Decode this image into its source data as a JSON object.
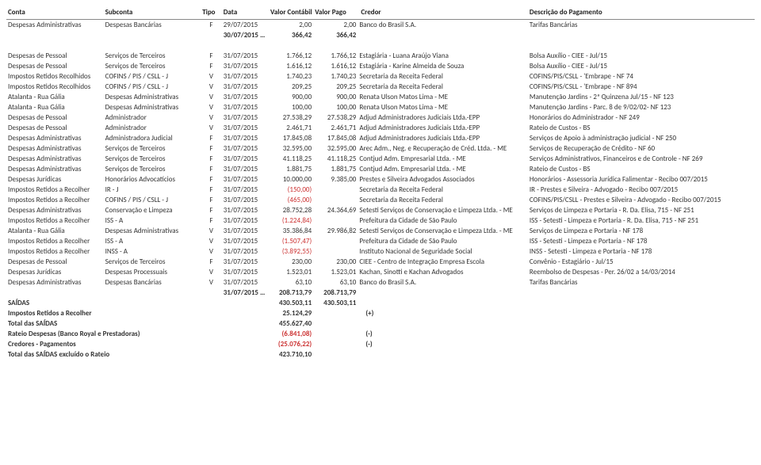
{
  "headers": {
    "conta": "Conta",
    "subconta": "Subconta",
    "tipo": "Tipo",
    "data": "Data",
    "valor_contabil": "Valor Contábil",
    "valor_pago": "Valor Pago",
    "credor": "Credor",
    "descricao": "Descrição do Pagamento"
  },
  "rows": [
    {
      "conta": "Despesas Administrativas",
      "sub": "Despesas Bancárias",
      "tipo": "F",
      "data": "29/07/2015",
      "vc": "2,00",
      "vp": "2,00",
      "cred": "Banco do Brasil S.A.",
      "desc": "Tarifas Bancárias"
    },
    {
      "conta": "",
      "sub": "",
      "tipo": "",
      "data": "30/07/2015 Total",
      "vc": "366,42",
      "vp": "366,42",
      "cred": "",
      "desc": "",
      "is_subtotal": true
    },
    {
      "blank": true
    },
    {
      "conta": "Despesas de Pessoal",
      "sub": "Serviços de Terceiros",
      "tipo": "F",
      "data": "31/07/2015",
      "vc": "1.766,12",
      "vp": "1.766,12",
      "cred": "Estagiária - Luana Araújo Viana",
      "desc": "Bolsa Auxílio - CIEE - Jul/15"
    },
    {
      "conta": "Despesas de Pessoal",
      "sub": "Serviços de Terceiros",
      "tipo": "F",
      "data": "31/07/2015",
      "vc": "1.616,12",
      "vp": "1.616,12",
      "cred": "Estagiária - Karine Almeida de Souza",
      "desc": "Bolsa Auxílio - CIEE - Jul/15"
    },
    {
      "conta": "Impostos Retidos Recolhidos",
      "sub": "COFINS / PIS / CSLL - J",
      "tipo": "V",
      "data": "31/07/2015",
      "vc": "1.740,23",
      "vp": "1.740,23",
      "cred": "Secretaria da Receita Federal",
      "desc": "COFINS/PIS/CSLL - 'Embrape  - NF 74"
    },
    {
      "conta": "Impostos Retidos Recolhidos",
      "sub": "COFINS / PIS / CSLL - J",
      "tipo": "V",
      "data": "31/07/2015",
      "vc": "209,25",
      "vp": "209,25",
      "cred": "Secretaria da Receita Federal",
      "desc": "COFINS/PIS/CSLL - 'Embrape  - NF 894"
    },
    {
      "conta": "Atalanta - Rua Gália",
      "sub": "Despesas Administrativas",
      "tipo": "V",
      "data": "31/07/2015",
      "vc": "900,00",
      "vp": "900,00",
      "cred": "Renata Ulson Matos Lima - ME",
      "desc": "Manutenção Jardins - 2ª Quinzena Jul/15 -  NF 123"
    },
    {
      "conta": "Atalanta - Rua Gália",
      "sub": "Despesas Administrativas",
      "tipo": "V",
      "data": "31/07/2015",
      "vc": "100,00",
      "vp": "100,00",
      "cred": "Renata Ulson Matos Lima - ME",
      "desc": "Manutenção Jardins - Parc. 8 de 9/02/02-  NF 123"
    },
    {
      "conta": "Despesas de Pessoal",
      "sub": "Administrador",
      "tipo": "V",
      "data": "31/07/2015",
      "vc": "27.538,29",
      "vp": "27.538,29",
      "cred": "Adjud Administradores Judiciais Ltda.-EPP",
      "desc": "Honorários do Administrador - NF 249"
    },
    {
      "conta": "Despesas de Pessoal",
      "sub": "Administrador",
      "tipo": "V",
      "data": "31/07/2015",
      "vc": "2.461,71",
      "vp": "2.461,71",
      "cred": "Adjud Administradores Judiciais Ltda.-EPP",
      "desc": "Rateio de Custos - BS"
    },
    {
      "conta": "Despesas Administrativas",
      "sub": "Administradora Judicial",
      "tipo": "F",
      "data": "31/07/2015",
      "vc": "17.845,08",
      "vp": "17.845,08",
      "cred": "Adjud Administradores Judiciais Ltda.-EPP",
      "desc": "Serviços de Apoio à administração judicial - NF 250"
    },
    {
      "conta": "Despesas Administrativas",
      "sub": "Serviços de Terceiros",
      "tipo": "F",
      "data": "31/07/2015",
      "vc": "32.595,00",
      "vp": "32.595,00",
      "cred": "Arec Adm., Neg. e Recuperação de Créd. Ltda. - ME",
      "desc": "Serviços de Recuperação de Crédito - NF 60"
    },
    {
      "conta": "Despesas Administrativas",
      "sub": "Serviços de Terceiros",
      "tipo": "F",
      "data": "31/07/2015",
      "vc": "41.118,25",
      "vp": "41.118,25",
      "cred": "Contjud Adm. Empresarial Ltda. - ME",
      "desc": "Serviços Administrativos, Financeiros e de Controle - NF 269"
    },
    {
      "conta": "Despesas Administrativas",
      "sub": "Serviços de Terceiros",
      "tipo": "F",
      "data": "31/07/2015",
      "vc": "1.881,75",
      "vp": "1.881,75",
      "cred": "Contjud Adm. Empresarial Ltda. - ME",
      "desc": "Rateio de Custos - BS"
    },
    {
      "conta": "Despesas Jurídicas",
      "sub": "Honorários Advocatícios",
      "tipo": "F",
      "data": "31/07/2015",
      "vc": "10.000,00",
      "vp": "9.385,00",
      "cred": "Prestes e Silveira Advogados Associados",
      "desc": "Honorários - Assessoria Jurídica Falimentar - Recibo 007/2015"
    },
    {
      "conta": "Impostos Retidos a Recolher",
      "sub": "IR - J",
      "tipo": "F",
      "data": "31/07/2015",
      "vc": "(150,00)",
      "vc_red": true,
      "vp": "",
      "cred": "Secretaria da Receita Federal",
      "desc": "IR - Prestes e Silveira - Advogado - Recibo 007/2015"
    },
    {
      "conta": "Impostos Retidos a Recolher",
      "sub": "COFINS / PIS / CSLL - J",
      "tipo": "F",
      "data": "31/07/2015",
      "vc": "(465,00)",
      "vc_red": true,
      "vp": "",
      "cred": "Secretaria da Receita Federal",
      "desc": "COFINS/PIS/CSLL - Prestes e Silveira - Advogado - Recibo 007/2015"
    },
    {
      "conta": "Despesas Administrativas",
      "sub": "Conservação e Limpeza",
      "tipo": "F",
      "data": "31/07/2015",
      "vc": "28.752,28",
      "vp": "24.364,69",
      "cred": "Setesti Serviços de Conservação e Limpeza Ltda. - ME",
      "desc": "Serviços de Limpeza e Portaria - R. Da. Elisa, 715 - NF 251"
    },
    {
      "conta": "Impostos Retidos a Recolher",
      "sub": "ISS - A",
      "tipo": "F",
      "data": "31/07/2015",
      "vc": "(1.224,84)",
      "vc_red": true,
      "vp": "",
      "cred": "Prefeitura da Cidade de São Paulo",
      "desc": "ISS - Setesti - Limpeza e Portaria - R. Da. Elisa, 715 - NF 251"
    },
    {
      "conta": "Atalanta - Rua Gália",
      "sub": "Despesas Administrativas",
      "tipo": "V",
      "data": "31/07/2015",
      "vc": "35.386,84",
      "vp": "29.986,82",
      "cred": "Setesti Serviços de Conservação e Limpeza Ltda. - ME",
      "desc": "Serviços de Limpeza e Portaria - NF 178"
    },
    {
      "conta": "Impostos Retidos a Recolher",
      "sub": "ISS - A",
      "tipo": "V",
      "data": "31/07/2015",
      "vc": "(1.507,47)",
      "vc_red": true,
      "vp": "",
      "cred": "Prefeitura da Cidade de São Paulo",
      "desc": "ISS - Setesti - Limpeza e Portaria - NF 178"
    },
    {
      "conta": "Impostos Retidos a Recolher",
      "sub": "INSS - A",
      "tipo": "V",
      "data": "31/07/2015",
      "vc": "(3.892,55)",
      "vc_red": true,
      "vp": "",
      "cred": "Instituto Nacional de Seguridade Social",
      "desc": "INSS - Setesti - Limpeza e Portaria - NF 178"
    },
    {
      "conta": "Despesas de Pessoal",
      "sub": "Serviços de Terceiros",
      "tipo": "F",
      "data": "31/07/2015",
      "vc": "230,00",
      "vp": "230,00",
      "cred": "CIEE - Centro de Integração Empresa Escola",
      "desc": "Convênio - Estagiário - Jul/15"
    },
    {
      "conta": "Despesas Jurídicas",
      "sub": "Despesas Processuais",
      "tipo": "V",
      "data": "31/07/2015",
      "vc": "1.523,01",
      "vp": "1.523,01",
      "cred": "Kachan, Sinotti e Kachan Advogados",
      "desc": "Reembolso de Despesas - Per. 26/02 a 14/03/2014"
    },
    {
      "conta": "Despesas Administrativas",
      "sub": "Despesas Bancárias",
      "tipo": "V",
      "data": "31/07/2015",
      "vc": "63,10",
      "vp": "63,10",
      "cred": "Banco do Brasil S.A.",
      "desc": "Tarifas Bancárias"
    },
    {
      "conta": "",
      "sub": "",
      "tipo": "",
      "data": "31/07/2015 Total",
      "vc": "208.713,79",
      "vp": "208.713,79",
      "cred": "",
      "desc": "",
      "is_subtotal": true
    }
  ],
  "summary": [
    {
      "label": "SAÍDAS",
      "v1": "430.503,11",
      "v2": "430.503,11",
      "suffix": "",
      "bold": true
    },
    {
      "label": "Impostos Retidos a Recolher",
      "v1": "25.124,29",
      "v2": "",
      "suffix": "(+)",
      "bold": true
    },
    {
      "label": "Total das SAÍDAS",
      "v1": "455.627,40",
      "v2": "",
      "suffix": "",
      "bold": true
    },
    {
      "label": "Rateio Despesas (Banco Royal e Prestadoras)",
      "v1": "(6.841,08)",
      "v1_red": true,
      "v2": "",
      "suffix": "(-)",
      "bold": true
    },
    {
      "label": "Credores - Pagamentos",
      "v1": "(25.076,22)",
      "v1_red": true,
      "v2": "",
      "suffix": "(-)",
      "bold": true
    },
    {
      "label": "Total das SAÍDAS excluído o Rateio",
      "v1": "423.710,10",
      "v2": "",
      "suffix": "",
      "bold": true
    }
  ]
}
